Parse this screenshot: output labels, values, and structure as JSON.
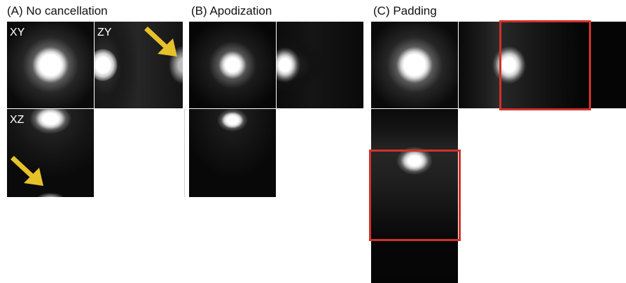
{
  "panels": {
    "a": {
      "title": "(A) No cancellation"
    },
    "b": {
      "title": "(B) Apodization"
    },
    "c": {
      "title": "(C) Padding"
    }
  },
  "views": {
    "xy": "XY",
    "zy": "ZY",
    "xz": "XZ"
  },
  "colors": {
    "arrow": "#e6c12a",
    "highlight_box": "#d2312b",
    "background_tile": "#040404"
  },
  "icons": {
    "arrow": "arrow-icon"
  }
}
